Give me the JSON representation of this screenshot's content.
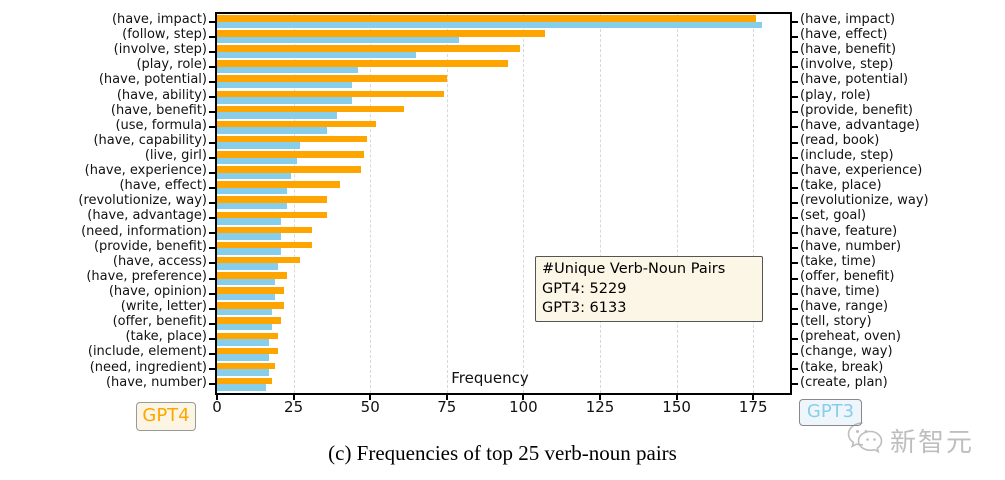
{
  "chart_data": {
    "type": "bar",
    "orientation": "horizontal",
    "title": "",
    "xlabel": "Frequency",
    "xlim": [
      0,
      187
    ],
    "xticks": [
      0,
      25,
      50,
      75,
      100,
      125,
      150,
      175
    ],
    "grid": "dashed-vertical-at-xticks",
    "legend_position": "below-axis (GPT4 left, GPT3 right)",
    "series": [
      {
        "name": "GPT4",
        "color": "#FFA500",
        "labels_side": "left",
        "categories": [
          "(have, impact)",
          "(follow, step)",
          "(involve, step)",
          "(play, role)",
          "(have, potential)",
          "(have, ability)",
          "(have, benefit)",
          "(use, formula)",
          "(have, capability)",
          "(live, girl)",
          "(have, experience)",
          "(have, effect)",
          "(revolutionize, way)",
          "(have, advantage)",
          "(need, information)",
          "(provide, benefit)",
          "(have, access)",
          "(have, preference)",
          "(have, opinion)",
          "(write, letter)",
          "(offer, benefit)",
          "(take, place)",
          "(include, element)",
          "(need, ingredient)",
          "(have, number)"
        ],
        "values": [
          176,
          107,
          99,
          95,
          75,
          74,
          61,
          52,
          49,
          48,
          47,
          40,
          36,
          36,
          31,
          31,
          27,
          23,
          22,
          22,
          21,
          20,
          20,
          19,
          18
        ]
      },
      {
        "name": "GPT3",
        "color": "#87CEEB",
        "labels_side": "right",
        "categories": [
          "(have, impact)",
          "(have, effect)",
          "(have, benefit)",
          "(involve, step)",
          "(have, potential)",
          "(play, role)",
          "(provide, benefit)",
          "(have, advantage)",
          "(read, book)",
          "(include, step)",
          "(have, experience)",
          "(take, place)",
          "(revolutionize, way)",
          "(set, goal)",
          "(have, feature)",
          "(have, number)",
          "(take, time)",
          "(offer, benefit)",
          "(have, time)",
          "(have, range)",
          "(tell, story)",
          "(preheat, oven)",
          "(change, way)",
          "(take, break)",
          "(create, plan)"
        ],
        "values": [
          178,
          79,
          65,
          46,
          44,
          44,
          39,
          36,
          27,
          26,
          24,
          23,
          23,
          21,
          21,
          21,
          20,
          19,
          19,
          18,
          18,
          17,
          17,
          17,
          16
        ]
      }
    ],
    "annotation": {
      "line1": "#Unique Verb-Noun Pairs",
      "line2": "GPT4: 5229",
      "line3": "GPT3: 6133"
    }
  },
  "legend": {
    "gpt4_label": "GPT4",
    "gpt3_label": "GPT3"
  },
  "xlabel": "Frequency",
  "caption": "(c) Frequencies of top 25 verb-noun pairs",
  "watermark": {
    "text": "新智元"
  },
  "colors": {
    "gpt4": "#FFA500",
    "gpt3": "#87CEEB",
    "grid": "#D8D8D8",
    "frame": "#000000",
    "annotation_bg": "#FCF6E6",
    "legend_gpt4_bg": "#FCF5E3",
    "legend_gpt3_bg": "#EFF6FB",
    "watermark_gray": "#8A8A8A"
  }
}
